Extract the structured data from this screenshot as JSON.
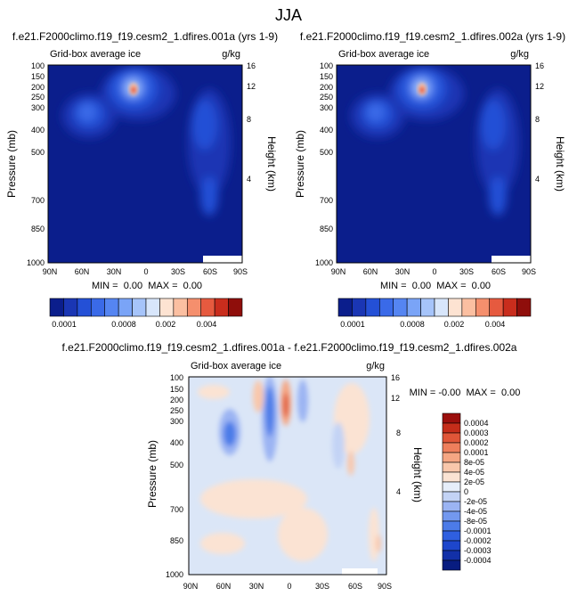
{
  "figure": {
    "title": "JJA"
  },
  "colors": {
    "mean_palette": [
      "#0b1e8c",
      "#1a36b4",
      "#2450d6",
      "#3a6ae8",
      "#5585f2",
      "#7aa4f7",
      "#a6c4fa",
      "#d8e6fb",
      "#fde3d2",
      "#fbbfa1",
      "#f58f6d",
      "#e65a3f",
      "#c92d1d",
      "#8f0e0b"
    ],
    "diff_palette": [
      "#081c80",
      "#1230a8",
      "#1d46cc",
      "#2f5fe0",
      "#4c7be8",
      "#7398ef",
      "#9bb4f3",
      "#c3d3f5",
      "#e6eefa",
      "#fbe3d3",
      "#f9c7ab",
      "#f5a683",
      "#ee7f5c",
      "#e05638",
      "#c52d1a",
      "#9b0f0c"
    ]
  },
  "chart_data": [
    {
      "type": "heatmap",
      "title": "f.e21.F2000climo.f19_f19.cesm2_1.dfires.001a (yrs 1-9)",
      "subtitle_left": "Grid-box average ice",
      "subtitle_right": "g/kg",
      "ylabel": "Pressure (mb)",
      "ylabel_right": "Height (km)",
      "xticks": [
        "90N",
        "60N",
        "30N",
        "0",
        "30S",
        "60S",
        "90S"
      ],
      "yticks": [
        100,
        150,
        200,
        250,
        300,
        400,
        500,
        700,
        850,
        1000
      ],
      "yticks_right": [
        16,
        12,
        8,
        4
      ],
      "ylim": [
        1000,
        100
      ],
      "stats": "MIN =  0.00  MAX =  0.00",
      "colorbar_labels": [
        "0.0001",
        "0.0008",
        "0.002",
        "0.004"
      ],
      "colorbar_levels": 14
    },
    {
      "type": "heatmap",
      "title": "f.e21.F2000climo.f19_f19.cesm2_1.dfires.002a (yrs 1-9)",
      "subtitle_left": "Grid-box average ice",
      "subtitle_right": "g/kg",
      "ylabel": "Pressure (mb)",
      "ylabel_right": "Height (km)",
      "xticks": [
        "90N",
        "60N",
        "30N",
        "0",
        "30S",
        "60S",
        "90S"
      ],
      "yticks": [
        100,
        150,
        200,
        250,
        300,
        400,
        500,
        700,
        850,
        1000
      ],
      "yticks_right": [
        16,
        12,
        8,
        4
      ],
      "ylim": [
        1000,
        100
      ],
      "stats": "MIN =  0.00  MAX =  0.00",
      "colorbar_labels": [
        "0.0001",
        "0.0008",
        "0.002",
        "0.004"
      ],
      "colorbar_levels": 14
    },
    {
      "type": "heatmap",
      "title": "f.e21.F2000climo.f19_f19.cesm2_1.dfires.001a - f.e21.F2000climo.f19_f19.cesm2_1.dfires.002a",
      "subtitle_left": "Grid-box average ice",
      "subtitle_right": "g/kg",
      "ylabel": "Pressure (mb)",
      "ylabel_right": "Height (km)",
      "xticks": [
        "90N",
        "60N",
        "30N",
        "0",
        "30S",
        "60S",
        "90S"
      ],
      "yticks": [
        100,
        150,
        200,
        250,
        300,
        400,
        500,
        700,
        850,
        1000
      ],
      "yticks_right": [
        16,
        12,
        8,
        4
      ],
      "ylim": [
        1000,
        100
      ],
      "stats": "MIN = -0.00  MAX =  0.00",
      "colorbar_labels": [
        "0.0004",
        "0.0003",
        "0.0002",
        "0.0001",
        "8e-05",
        "4e-05",
        "2e-05",
        "0",
        "-2e-05",
        "-4e-05",
        "-8e-05",
        "-0.0001",
        "-0.0002",
        "-0.0003",
        "-0.0004"
      ],
      "colorbar_levels": 16
    }
  ]
}
